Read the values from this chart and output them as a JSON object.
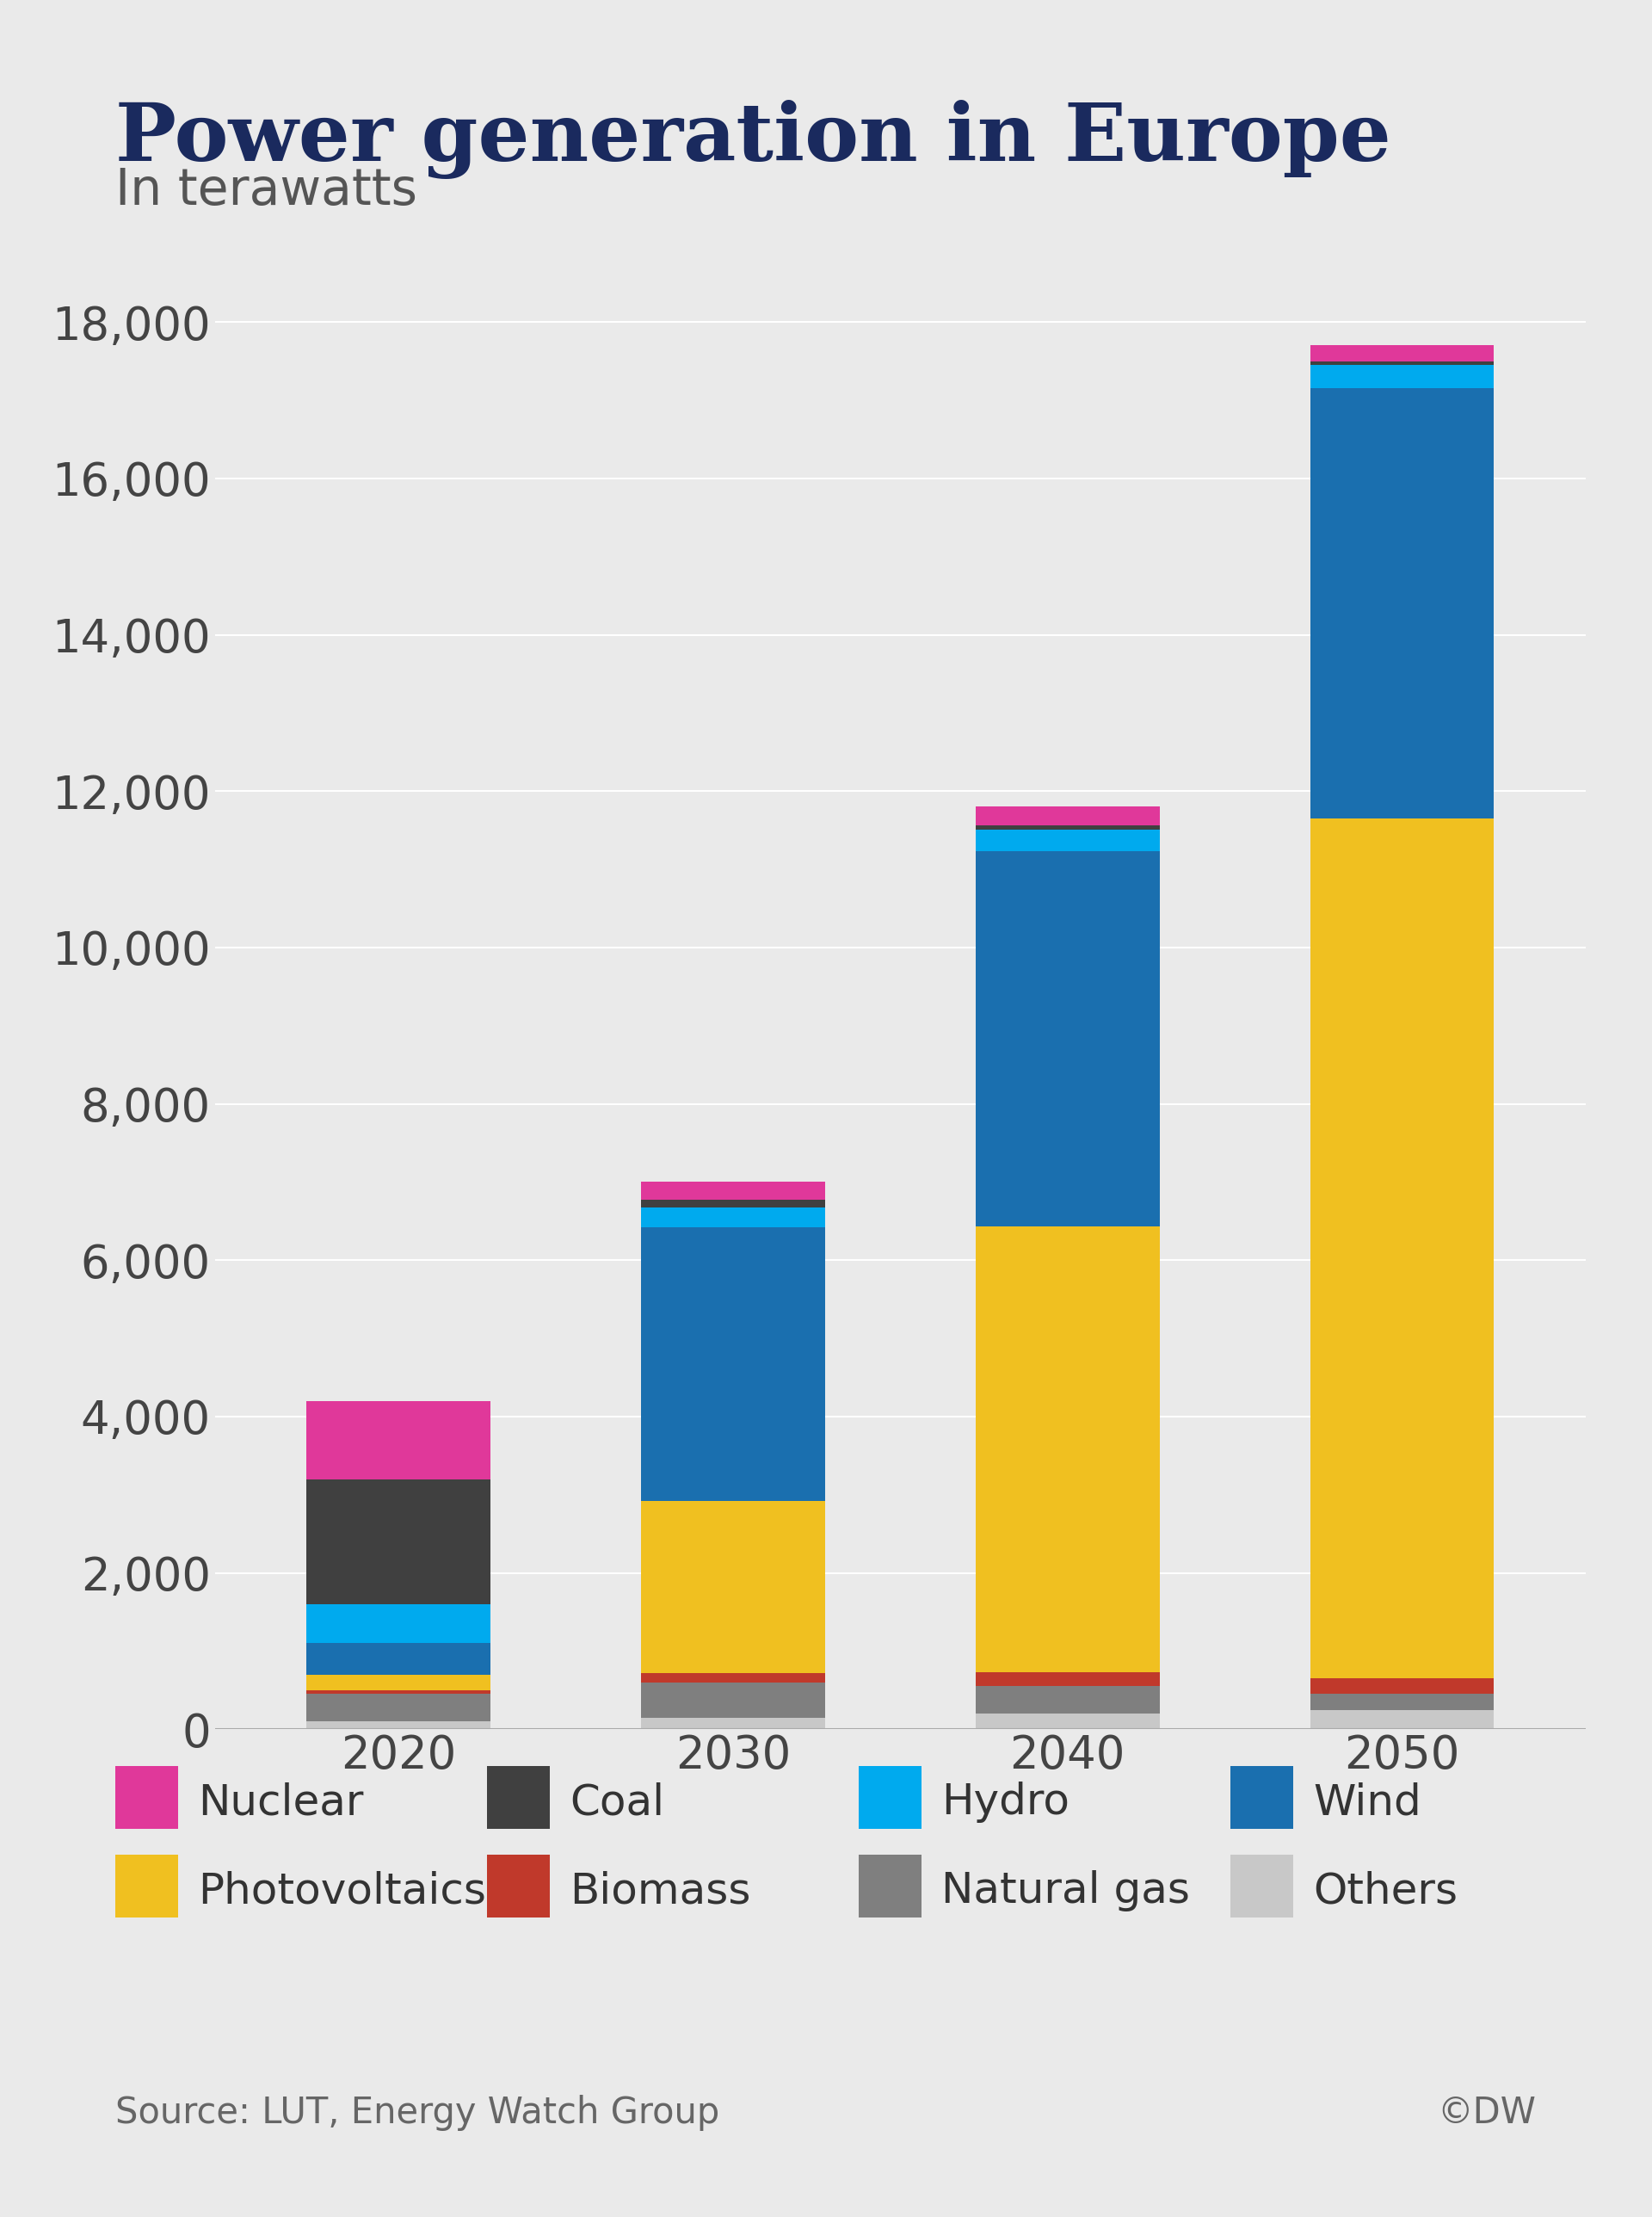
{
  "title": "Power generation in Europe",
  "subtitle": "In terawatts",
  "years": [
    "2020",
    "2030",
    "2040",
    "2050"
  ],
  "series": {
    "Others": [
      100,
      150,
      200,
      250
    ],
    "Natural gas": [
      350,
      450,
      350,
      200
    ],
    "Biomass": [
      50,
      120,
      180,
      200
    ],
    "Photovoltaics": [
      200,
      2200,
      5700,
      11000
    ],
    "Wind": [
      400,
      3500,
      4800,
      5500
    ],
    "Hydro": [
      500,
      250,
      280,
      300
    ],
    "Coal": [
      1600,
      100,
      50,
      50
    ],
    "Nuclear": [
      1000,
      230,
      240,
      200
    ]
  },
  "colors": {
    "Others": "#c8c8c8",
    "Natural gas": "#7f7f7f",
    "Biomass": "#c0392b",
    "Photovoltaics": "#f0c020",
    "Wind": "#1a6faf",
    "Hydro": "#00aaee",
    "Coal": "#404040",
    "Nuclear": "#e0389a"
  },
  "stack_order": [
    "Others",
    "Natural gas",
    "Biomass",
    "Photovoltaics",
    "Wind",
    "Hydro",
    "Coal",
    "Nuclear"
  ],
  "legend_order": [
    "Nuclear",
    "Coal",
    "Hydro",
    "Wind",
    "Photovoltaics",
    "Biomass",
    "Natural gas",
    "Others"
  ],
  "ylim": [
    0,
    19000
  ],
  "yticks": [
    0,
    2000,
    4000,
    6000,
    8000,
    10000,
    12000,
    14000,
    16000,
    18000
  ],
  "background_color": "#eaeaea",
  "title_color": "#1a2a5e",
  "subtitle_color": "#555555",
  "tick_color": "#444444",
  "source_text": "Source: LUT, Energy Watch Group",
  "copyright_text": "©DW",
  "bar_width": 0.55
}
